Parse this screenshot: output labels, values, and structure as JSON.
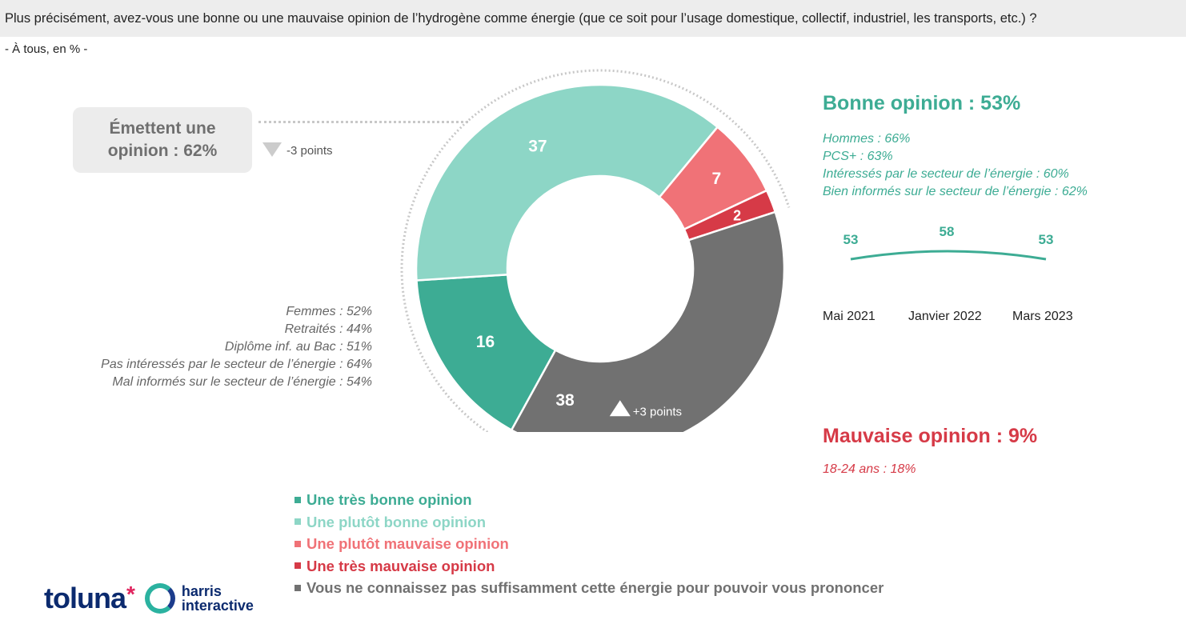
{
  "question": "Plus précisément, avez-vous une bonne ou une mauvaise opinion de l’hydrogène comme énergie (que ce soit pour l’usage domestique, collectif, industriel, les transports, etc.) ?",
  "base": "- À tous, en % -",
  "callout": {
    "text": "Émettent une opinion : 62%",
    "delta_text": "-3 points"
  },
  "left_list": [
    "Femmes : 52%",
    "Retraités : 44%",
    "Diplôme inf. au Bac : 51%",
    "Pas intéressés par le secteur de l’énergie : 64%",
    "Mal informés sur le secteur de l’énergie : 54%"
  ],
  "bonne": {
    "title": "Bonne opinion : 53%",
    "list": [
      "Hommes : 66%",
      "PCS+ : 63%",
      "Intéressés par le secteur de l’énergie : 60%",
      "Bien informés sur le secteur de l’énergie : 62%"
    ]
  },
  "mauvaise": {
    "title": "Mauvaise opinion : 9%",
    "sub": "18-24 ans : 18%"
  },
  "trend": {
    "labels": [
      "Mai 2021",
      "Janvier 2022",
      "Mars 2023"
    ],
    "values": [
      53,
      58,
      53
    ],
    "color": "#3dac94"
  },
  "chart_data": {
    "type": "pie",
    "categories": [
      "Une très bonne opinion",
      "Une plutôt bonne opinion",
      "Une plutôt mauvaise opinion",
      "Une très mauvaise opinion",
      "Vous ne connaissez pas suffisamment cette énergie pour pouvoir vous prononcer"
    ],
    "values": [
      16,
      37,
      7,
      2,
      38
    ],
    "colors": [
      "#3dac94",
      "#8dd6c6",
      "#f07277",
      "#d63a47",
      "#717171"
    ],
    "donut": true,
    "data_labels": [
      "16",
      "37",
      "7",
      "2",
      "38"
    ],
    "annotation": "+3 points",
    "legend_position": "bottom"
  },
  "logo": {
    "brand": "toluna",
    "star": "*",
    "partner_line1": "harris",
    "partner_line2": "interactive"
  }
}
